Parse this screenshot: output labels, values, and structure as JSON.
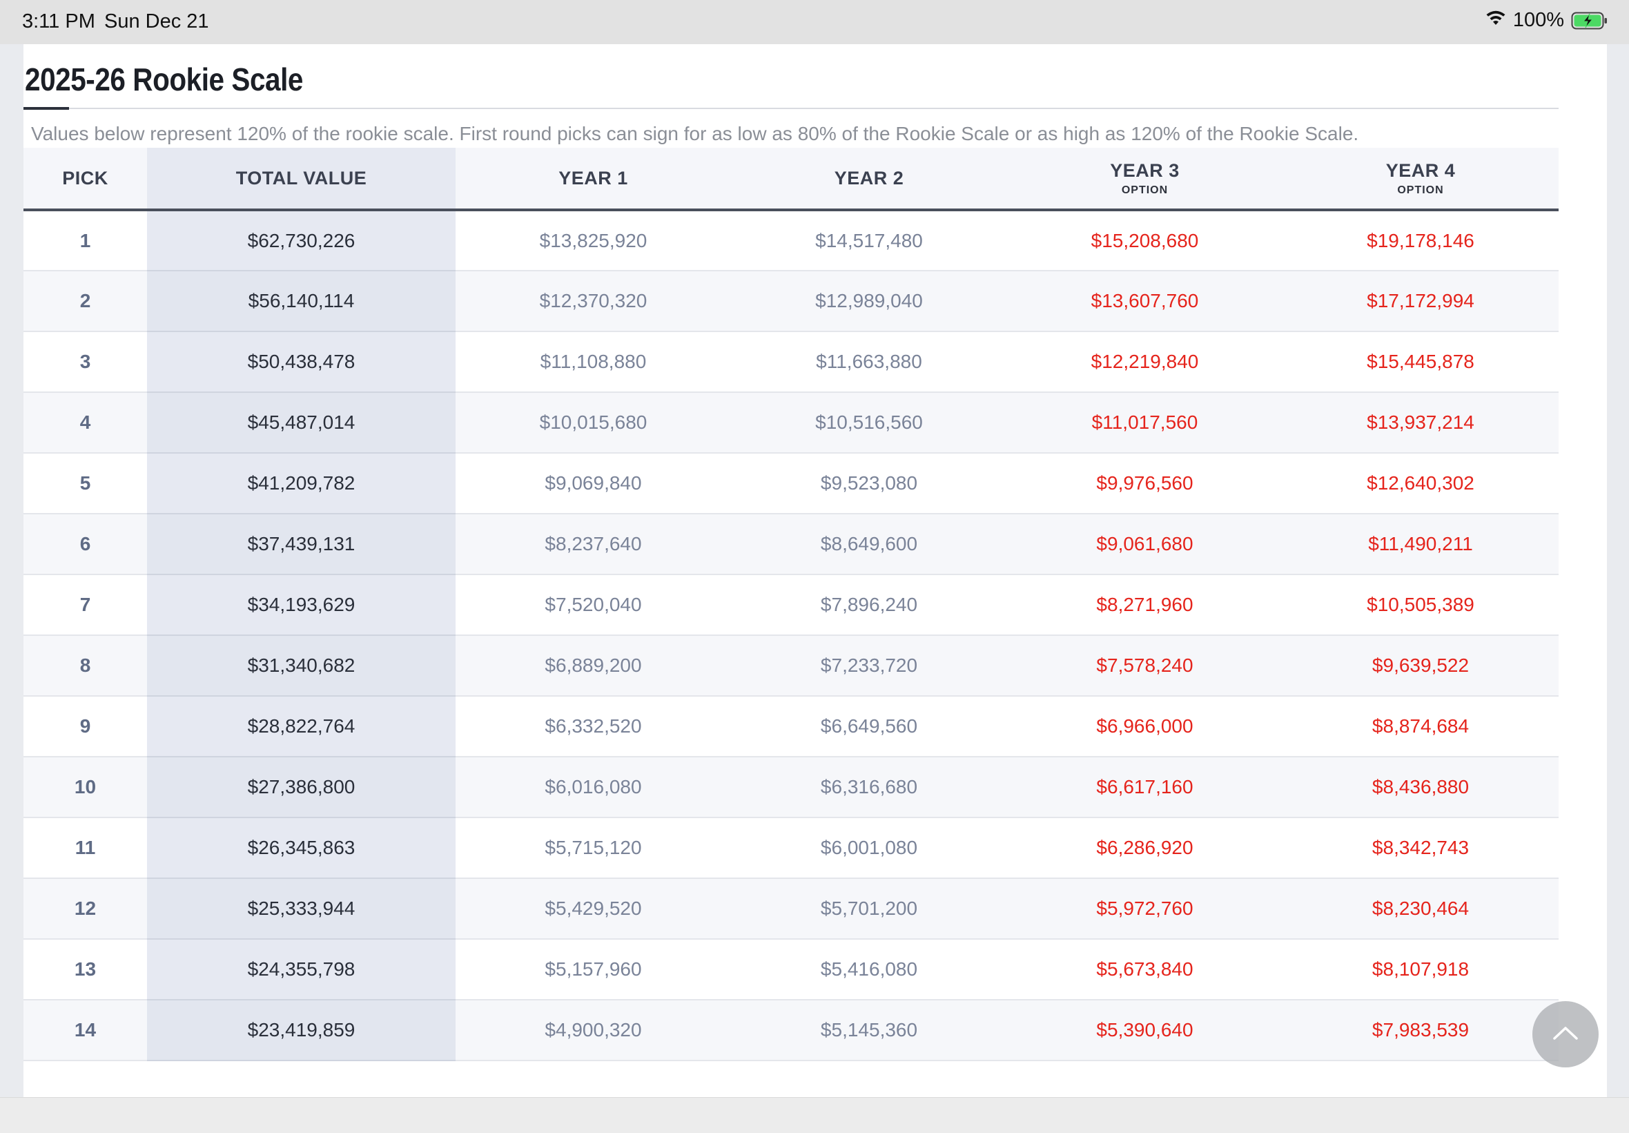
{
  "status_bar": {
    "time": "3:11 PM",
    "date": "Sun Dec 21",
    "battery": "100%"
  },
  "page": {
    "title": "2025-26 Rookie Scale",
    "note": "Values below represent 120% of the rookie scale. First round picks can sign for as low as 80% of the Rookie Scale or as high as 120% of the Rookie Scale."
  },
  "table": {
    "headers": {
      "pick": "PICK",
      "total": "TOTAL VALUE",
      "year1": "YEAR 1",
      "year2": "YEAR 2",
      "year3": "YEAR 3",
      "year3_sub": "OPTION",
      "year4": "YEAR 4",
      "year4_sub": "OPTION"
    },
    "rows": [
      {
        "pick": "1",
        "total": "$62,730,226",
        "year1": "$13,825,920",
        "year2": "$14,517,480",
        "year3": "$15,208,680",
        "year4": "$19,178,146"
      },
      {
        "pick": "2",
        "total": "$56,140,114",
        "year1": "$12,370,320",
        "year2": "$12,989,040",
        "year3": "$13,607,760",
        "year4": "$17,172,994"
      },
      {
        "pick": "3",
        "total": "$50,438,478",
        "year1": "$11,108,880",
        "year2": "$11,663,880",
        "year3": "$12,219,840",
        "year4": "$15,445,878"
      },
      {
        "pick": "4",
        "total": "$45,487,014",
        "year1": "$10,015,680",
        "year2": "$10,516,560",
        "year3": "$11,017,560",
        "year4": "$13,937,214"
      },
      {
        "pick": "5",
        "total": "$41,209,782",
        "year1": "$9,069,840",
        "year2": "$9,523,080",
        "year3": "$9,976,560",
        "year4": "$12,640,302"
      },
      {
        "pick": "6",
        "total": "$37,439,131",
        "year1": "$8,237,640",
        "year2": "$8,649,600",
        "year3": "$9,061,680",
        "year4": "$11,490,211"
      },
      {
        "pick": "7",
        "total": "$34,193,629",
        "year1": "$7,520,040",
        "year2": "$7,896,240",
        "year3": "$8,271,960",
        "year4": "$10,505,389"
      },
      {
        "pick": "8",
        "total": "$31,340,682",
        "year1": "$6,889,200",
        "year2": "$7,233,720",
        "year3": "$7,578,240",
        "year4": "$9,639,522"
      },
      {
        "pick": "9",
        "total": "$28,822,764",
        "year1": "$6,332,520",
        "year2": "$6,649,560",
        "year3": "$6,966,000",
        "year4": "$8,874,684"
      },
      {
        "pick": "10",
        "total": "$27,386,800",
        "year1": "$6,016,080",
        "year2": "$6,316,680",
        "year3": "$6,617,160",
        "year4": "$8,436,880"
      },
      {
        "pick": "11",
        "total": "$26,345,863",
        "year1": "$5,715,120",
        "year2": "$6,001,080",
        "year3": "$6,286,920",
        "year4": "$8,342,743"
      },
      {
        "pick": "12",
        "total": "$25,333,944",
        "year1": "$5,429,520",
        "year2": "$5,701,200",
        "year3": "$5,972,760",
        "year4": "$8,230,464"
      },
      {
        "pick": "13",
        "total": "$24,355,798",
        "year1": "$5,157,960",
        "year2": "$5,416,080",
        "year3": "$5,673,840",
        "year4": "$8,107,918"
      },
      {
        "pick": "14",
        "total": "$23,419,859",
        "year1": "$4,900,320",
        "year2": "$5,145,360",
        "year3": "$5,390,640",
        "year4": "$7,983,539"
      }
    ]
  },
  "colors": {
    "option_red": "#e5241c",
    "battery_green": "#4cd964"
  },
  "icons": {
    "wifi": "wifi-icon",
    "battery": "battery-charging-icon",
    "scroll_top": "chevron-up-icon"
  }
}
